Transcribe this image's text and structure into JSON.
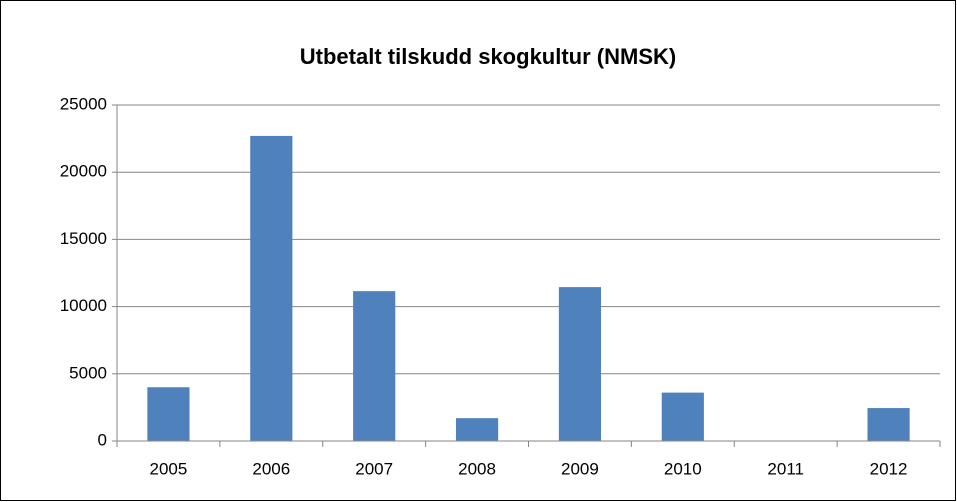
{
  "chart_data": {
    "type": "bar",
    "title": "Utbetalt tilskudd skogkultur (NMSK)",
    "categories": [
      "2005",
      "2006",
      "2007",
      "2008",
      "2009",
      "2010",
      "2011",
      "2012"
    ],
    "values": [
      4000,
      22700,
      11150,
      1700,
      11450,
      3600,
      0,
      2450
    ],
    "color": "#4f81bd",
    "ylim": [
      0,
      25000
    ],
    "yticks": [
      0,
      5000,
      10000,
      15000,
      20000,
      25000
    ],
    "grid": true
  }
}
